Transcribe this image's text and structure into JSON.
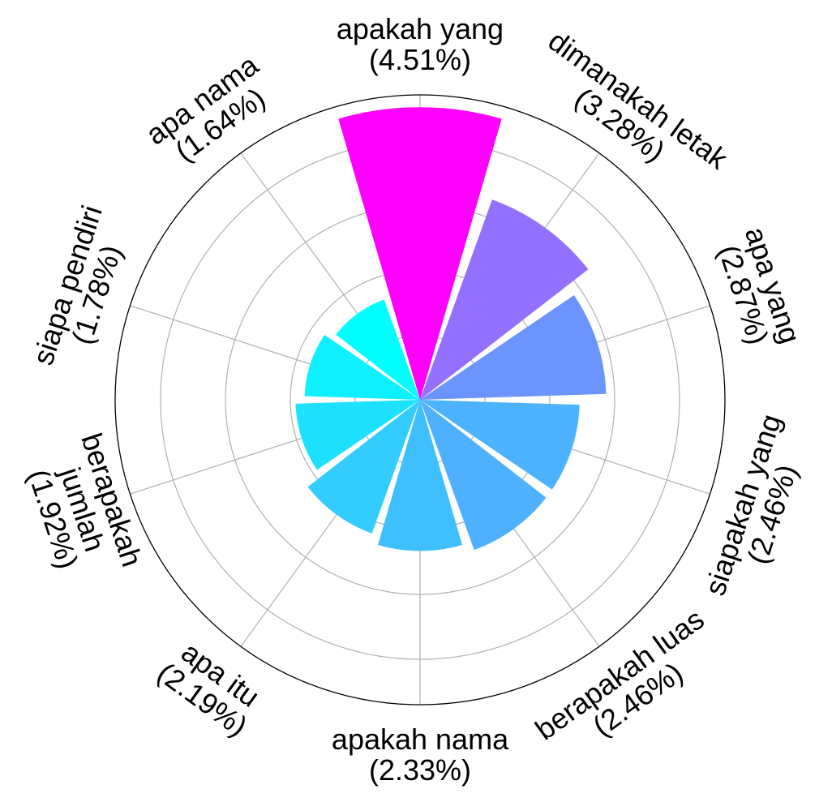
{
  "chart_data": {
    "type": "polar-bar",
    "title": "",
    "grid": true,
    "categories": [
      {
        "label": "apakah yang",
        "pct": "(4.51%)",
        "value": 4.51,
        "color": "#ff00ff"
      },
      {
        "label": "dimanakah letak",
        "pct": "(3.28%)",
        "value": 3.28,
        "color": "#9470ff"
      },
      {
        "label": "apa yang",
        "pct": "(2.87%)",
        "value": 2.87,
        "color": "#6b94ff"
      },
      {
        "label": "siapakah yang",
        "pct": "(2.46%)",
        "value": 2.46,
        "color": "#4db2ff"
      },
      {
        "label": "berapakah luas",
        "pct": "(2.46%)",
        "value": 2.46,
        "color": "#4fb0ff"
      },
      {
        "label": "apakah nama",
        "pct": "(2.33%)",
        "value": 2.33,
        "color": "#40bfff"
      },
      {
        "label": "apa itu",
        "pct": "(2.19%)",
        "value": 2.19,
        "color": "#33ccff"
      },
      {
        "label": "berapakah jumlah",
        "pct": "(1.92%)",
        "value": 1.92,
        "color": "#1ee1ff"
      },
      {
        "label": "siapa pendiri",
        "pct": "(1.78%)",
        "value": 1.78,
        "color": "#0ff0ff"
      },
      {
        "label": "apa nama",
        "pct": "(1.64%)",
        "value": 1.64,
        "color": "#00ffff"
      }
    ]
  }
}
